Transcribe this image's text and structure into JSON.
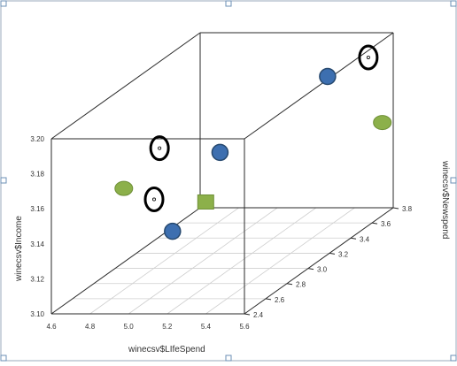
{
  "chart_data": {
    "type": "scatter",
    "title": "",
    "xlabel": "winecsv$LIfeSpend",
    "ylabel": "winecsv$Newspend",
    "zlabel": "winecsv$Income",
    "xlim": [
      4.6,
      5.6
    ],
    "ylim": [
      2.4,
      3.8
    ],
    "zlim": [
      3.1,
      3.2
    ],
    "x_ticks": [
      "4.6",
      "4.8",
      "5.0",
      "5.2",
      "5.4",
      "5.6"
    ],
    "y_ticks": [
      "2.4",
      "2.6",
      "2.8",
      "3.0",
      "3.2",
      "3.4",
      "3.6",
      "3.8"
    ],
    "z_ticks": [
      "3.10",
      "3.12",
      "3.14",
      "3.16",
      "3.18",
      "3.20"
    ],
    "grid": true,
    "points": [
      {
        "x": 4.7,
        "y": 2.9,
        "z": 3.15,
        "marker": "ellipse",
        "color": "#8cb04a"
      },
      {
        "x": 5.0,
        "y": 3.26,
        "z": 3.155,
        "marker": "circle",
        "color": "#3d6fb0"
      },
      {
        "x": 5.35,
        "y": 2.49,
        "z": 3.16,
        "marker": "square",
        "color": "#8cb04a"
      },
      {
        "x": 5.2,
        "y": 2.45,
        "z": 3.145,
        "marker": "circle",
        "color": "#3d6fb0"
      },
      {
        "x": 4.72,
        "y": 3.2,
        "z": 3.16,
        "marker": "ring",
        "color": "#000000"
      },
      {
        "x": 5.0,
        "y": 2.64,
        "z": 3.155,
        "marker": "ring",
        "color": "#000000"
      },
      {
        "x": 5.26,
        "y": 3.8,
        "z": 3.175,
        "marker": "circle",
        "color": "#3d6fb0"
      },
      {
        "x": 5.56,
        "y": 3.77,
        "z": 3.15,
        "marker": "ellipse",
        "color": "#8cb04a"
      },
      {
        "x": 5.46,
        "y": 3.82,
        "z": 3.185,
        "marker": "ring",
        "color": "#000000"
      }
    ]
  }
}
